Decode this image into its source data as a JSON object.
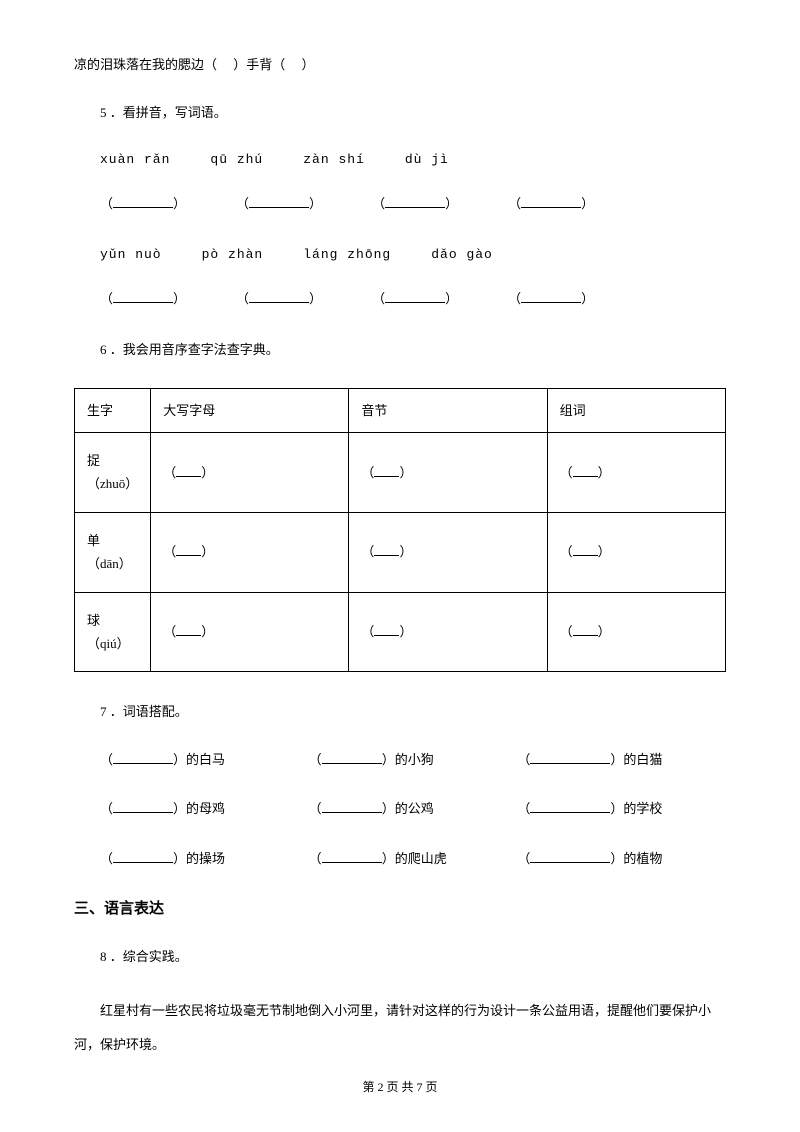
{
  "line1": {
    "pre": "凉的泪珠落在我的腮边（",
    "mid": "）手背（",
    "end": "）"
  },
  "q5": {
    "num": "5 ．",
    "title": "看拼音，写词语。"
  },
  "pinyin1": {
    "a": "xuàn rǎn",
    "b": "qū zhú",
    "c": "zàn shí",
    "d": "dù jì"
  },
  "pinyin2": {
    "a": "yǔn nuò",
    "b": "pò zhàn",
    "c": "láng zhōng",
    "d": "dǎo gào"
  },
  "q6": {
    "num": "6 ．",
    "title": "我会用音序查字法查字典。"
  },
  "table": {
    "headers": {
      "c1": "生字",
      "c2": "大写字母",
      "c3": "音节",
      "c4": "组词"
    },
    "rows": [
      {
        "char": "捉",
        "pinyin": "（zhuō）"
      },
      {
        "char": "单",
        "pinyin": "（dān）"
      },
      {
        "char": "球",
        "pinyin": "（qiú）"
      }
    ]
  },
  "q7": {
    "num": "7 ．",
    "title": "词语搭配。"
  },
  "match": {
    "r1": {
      "a": "）的白马",
      "b": "）的小狗",
      "c": "）的白猫"
    },
    "r2": {
      "a": "）的母鸡",
      "b": "）的公鸡",
      "c": "）的学校"
    },
    "r3": {
      "a": "）的操场",
      "b": "）的爬山虎",
      "c": "）的植物"
    }
  },
  "section3": "三、语言表达",
  "q8": {
    "num": "8 ．",
    "title": "综合实践。"
  },
  "q8body": "红星村有一些农民将垃圾毫无节制地倒入小河里，请针对这样的行为设计一条公益用语，提醒他们要保护小河，保护环境。",
  "footer": "第 2 页 共 7 页"
}
